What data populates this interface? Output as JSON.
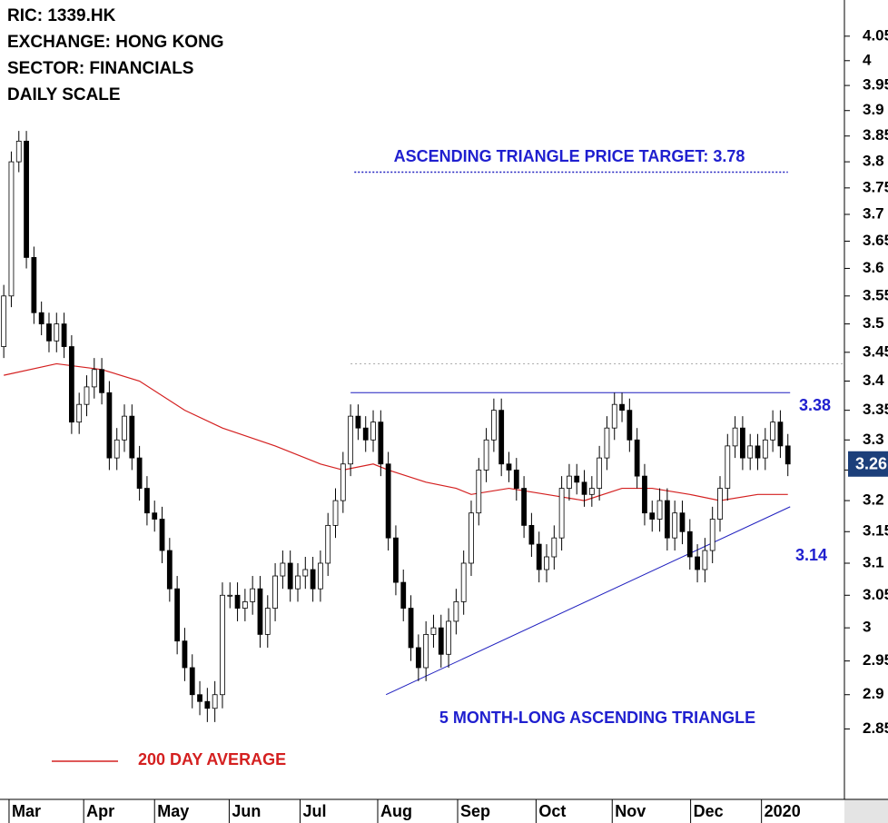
{
  "chart_data": {
    "type": "candlestick",
    "info": [
      "RIC: 1339.HK",
      "EXCHANGE: HONG KONG",
      "SECTOR: FINANCIALS",
      "DAILY SCALE"
    ],
    "log_scale": true,
    "ylim": [
      2.75,
      4.125
    ],
    "yticks": [
      2.85,
      2.9,
      2.95,
      3.0,
      3.05,
      3.1,
      3.15,
      3.2,
      3.25,
      3.3,
      3.35,
      3.4,
      3.45,
      3.5,
      3.55,
      3.6,
      3.65,
      3.7,
      3.75,
      3.8,
      3.85,
      3.9,
      3.95,
      4.0,
      4.05
    ],
    "xlim": [
      -0.5,
      111.5
    ],
    "xticks": [
      {
        "value": 0.7,
        "label": "Mar"
      },
      {
        "value": 10.6,
        "label": "Apr"
      },
      {
        "value": 20,
        "label": "May"
      },
      {
        "value": 29.9,
        "label": "Jun"
      },
      {
        "value": 39.3,
        "label": "Jul"
      },
      {
        "value": 49.6,
        "label": "Aug"
      },
      {
        "value": 60.2,
        "label": "Sep"
      },
      {
        "value": 70.6,
        "label": "Oct"
      },
      {
        "value": 80.7,
        "label": "Nov"
      },
      {
        "value": 91.1,
        "label": "Dec"
      },
      {
        "value": 100.5,
        "label": "2020"
      }
    ],
    "up_color": "#ffffff",
    "down_color": "#000000",
    "open": [
      3.46,
      3.55,
      3.8,
      3.84,
      3.62,
      3.52,
      3.5,
      3.47,
      3.5,
      3.46,
      3.33,
      3.36,
      3.39,
      3.42,
      3.38,
      3.27,
      3.3,
      3.34,
      3.27,
      3.22,
      3.18,
      3.17,
      3.12,
      3.06,
      2.98,
      2.94,
      2.9,
      2.89,
      2.88,
      2.9,
      3.05,
      3.05,
      3.03,
      3.04,
      3.06,
      2.99,
      3.03,
      3.08,
      3.1,
      3.06,
      3.08,
      3.09,
      3.06,
      3.1,
      3.16,
      3.2,
      3.26,
      3.34,
      3.32,
      3.3,
      3.33,
      3.26,
      3.14,
      3.07,
      3.03,
      2.97,
      2.94,
      2.99,
      3.0,
      2.96,
      3.01,
      3.04,
      3.1,
      3.18,
      3.25,
      3.3,
      3.35,
      3.26,
      3.25,
      3.22,
      3.16,
      3.13,
      3.09,
      3.11,
      3.14,
      3.22,
      3.24,
      3.23,
      3.21,
      3.22,
      3.27,
      3.32,
      3.36,
      3.35,
      3.3,
      3.24,
      3.18,
      3.17,
      3.2,
      3.14,
      3.18,
      3.15,
      3.11,
      3.09,
      3.12,
      3.17,
      3.22,
      3.29,
      3.32,
      3.27,
      3.29,
      3.27,
      3.3,
      3.33,
      3.29
    ],
    "high": [
      3.57,
      3.82,
      3.86,
      3.86,
      3.64,
      3.54,
      3.52,
      3.52,
      3.52,
      3.48,
      3.38,
      3.41,
      3.44,
      3.44,
      3.4,
      3.32,
      3.36,
      3.36,
      3.29,
      3.24,
      3.2,
      3.19,
      3.14,
      3.08,
      3.0,
      2.96,
      2.92,
      2.91,
      2.92,
      3.07,
      3.07,
      3.07,
      3.06,
      3.08,
      3.08,
      3.05,
      3.1,
      3.12,
      3.12,
      3.1,
      3.11,
      3.11,
      3.12,
      3.18,
      3.22,
      3.28,
      3.36,
      3.36,
      3.34,
      3.35,
      3.35,
      3.28,
      3.16,
      3.09,
      3.05,
      2.99,
      3.01,
      3.02,
      3.02,
      3.03,
      3.06,
      3.12,
      3.2,
      3.27,
      3.32,
      3.37,
      3.37,
      3.28,
      3.27,
      3.24,
      3.18,
      3.15,
      3.13,
      3.16,
      3.24,
      3.26,
      3.26,
      3.25,
      3.24,
      3.29,
      3.34,
      3.38,
      3.38,
      3.37,
      3.32,
      3.26,
      3.2,
      3.22,
      3.22,
      3.2,
      3.2,
      3.17,
      3.13,
      3.14,
      3.19,
      3.24,
      3.31,
      3.34,
      3.34,
      3.31,
      3.31,
      3.32,
      3.35,
      3.35,
      3.31
    ],
    "low": [
      3.44,
      3.53,
      3.78,
      3.6,
      3.5,
      3.48,
      3.45,
      3.45,
      3.44,
      3.31,
      3.31,
      3.34,
      3.37,
      3.36,
      3.25,
      3.25,
      3.28,
      3.25,
      3.2,
      3.16,
      3.15,
      3.1,
      3.04,
      2.96,
      2.92,
      2.88,
      2.87,
      2.86,
      2.86,
      2.88,
      3.03,
      3.01,
      3.01,
      3.02,
      2.97,
      2.97,
      3.01,
      3.06,
      3.04,
      3.04,
      3.06,
      3.04,
      3.04,
      3.08,
      3.14,
      3.18,
      3.24,
      3.3,
      3.28,
      3.28,
      3.24,
      3.12,
      3.05,
      3.01,
      2.95,
      2.92,
      2.92,
      2.97,
      2.94,
      2.94,
      2.99,
      3.02,
      3.08,
      3.16,
      3.23,
      3.28,
      3.24,
      3.23,
      3.2,
      3.14,
      3.11,
      3.07,
      3.07,
      3.09,
      3.12,
      3.2,
      3.21,
      3.19,
      3.19,
      3.2,
      3.25,
      3.3,
      3.33,
      3.28,
      3.22,
      3.16,
      3.15,
      3.15,
      3.12,
      3.12,
      3.13,
      3.09,
      3.07,
      3.07,
      3.1,
      3.15,
      3.2,
      3.27,
      3.25,
      3.25,
      3.25,
      3.25,
      3.28,
      3.27,
      3.24
    ],
    "close": [
      3.55,
      3.8,
      3.84,
      3.62,
      3.52,
      3.5,
      3.47,
      3.5,
      3.46,
      3.33,
      3.36,
      3.39,
      3.42,
      3.38,
      3.27,
      3.3,
      3.34,
      3.27,
      3.22,
      3.18,
      3.17,
      3.12,
      3.06,
      2.98,
      2.94,
      2.9,
      2.89,
      2.88,
      2.9,
      3.05,
      3.05,
      3.03,
      3.04,
      3.06,
      2.99,
      3.03,
      3.08,
      3.1,
      3.06,
      3.08,
      3.09,
      3.06,
      3.1,
      3.16,
      3.2,
      3.26,
      3.34,
      3.32,
      3.3,
      3.33,
      3.26,
      3.14,
      3.07,
      3.03,
      2.97,
      2.94,
      2.99,
      3.0,
      2.96,
      3.01,
      3.04,
      3.1,
      3.18,
      3.25,
      3.3,
      3.35,
      3.26,
      3.25,
      3.22,
      3.16,
      3.13,
      3.09,
      3.11,
      3.14,
      3.22,
      3.24,
      3.23,
      3.21,
      3.22,
      3.27,
      3.32,
      3.36,
      3.35,
      3.3,
      3.24,
      3.18,
      3.17,
      3.2,
      3.14,
      3.18,
      3.15,
      3.11,
      3.09,
      3.12,
      3.17,
      3.22,
      3.29,
      3.32,
      3.27,
      3.29,
      3.27,
      3.3,
      3.33,
      3.29,
      3.26
    ],
    "ma": {
      "name": "200 DAY AVERAGE",
      "color": "#d42020",
      "x": [
        0,
        7,
        13,
        18,
        24,
        29,
        36,
        42,
        45,
        49,
        51,
        56,
        60,
        62,
        67,
        72,
        77,
        82,
        86,
        91,
        95,
        100,
        104
      ],
      "values": [
        3.41,
        3.43,
        3.42,
        3.4,
        3.35,
        3.32,
        3.29,
        3.26,
        3.25,
        3.26,
        3.25,
        3.23,
        3.22,
        3.21,
        3.22,
        3.21,
        3.2,
        3.22,
        3.22,
        3.21,
        3.2,
        3.21,
        3.21
      ]
    },
    "resistance": {
      "label": "3.38",
      "value": 3.38,
      "x": [
        46,
        104.3
      ],
      "color": "#1f1fbf"
    },
    "support": {
      "label": "3.14",
      "x": [
        50.7,
        104.3
      ],
      "values": [
        2.9,
        3.19
      ],
      "color": "#1f1fbf"
    },
    "target": {
      "text": "ASCENDING TRIANGLE PRICE TARGET: 3.78",
      "value": 3.78,
      "x": [
        46.5,
        104
      ],
      "color": "#1f1fbf"
    },
    "reference_level": {
      "value": 3.43,
      "x": [
        46,
        111.5
      ],
      "color": "#aaaaaa"
    },
    "pattern_label": "5 MONTH-LONG ASCENDING TRIANGLE",
    "last_price": 3.26,
    "last_price_color": "#1c3f7a"
  }
}
